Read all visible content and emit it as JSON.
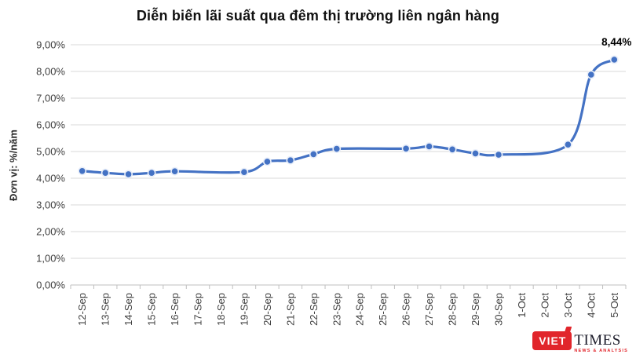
{
  "title": "Diễn biến lãi suất qua đêm thị trường liên ngân hàng",
  "y_axis_title": "Đơn vị: %/năm",
  "chart_data": {
    "type": "line",
    "title": "Diễn biến lãi suất qua đêm thị trường liên ngân hàng",
    "xlabel": "",
    "ylabel": "Đơn vị: %/năm",
    "categories": [
      "12-Sep",
      "13-Sep",
      "14-Sep",
      "15-Sep",
      "16-Sep",
      "17-Sep",
      "18-Sep",
      "19-Sep",
      "20-Sep",
      "21-Sep",
      "22-Sep",
      "23-Sep",
      "24-Sep",
      "25-Sep",
      "26-Sep",
      "27-Sep",
      "28-Sep",
      "29-Sep",
      "30-Sep",
      "1-Oct",
      "2-Oct",
      "3-Oct",
      "4-Oct",
      "5-Oct"
    ],
    "series": [
      {
        "name": "Lãi suất qua đêm",
        "values": [
          4.27,
          4.2,
          4.15,
          4.2,
          4.26,
          null,
          null,
          4.23,
          4.62,
          4.67,
          4.9,
          5.1,
          null,
          null,
          5.11,
          5.19,
          5.08,
          4.93,
          4.88,
          null,
          null,
          5.26,
          7.88,
          8.44
        ]
      }
    ],
    "ylim": [
      0,
      9
    ],
    "y_tick_labels": [
      "0,00%",
      "1,00%",
      "2,00%",
      "3,00%",
      "4,00%",
      "5,00%",
      "6,00%",
      "7,00%",
      "8,00%",
      "9,00%"
    ],
    "grid": true,
    "legend": false,
    "smooth": true,
    "line_color": "#4472C4",
    "marker_halo_color": "#e8eef9",
    "gridline_color": "#d9d9d9",
    "axis_line_color": "#bfbfbf",
    "tick_label_color": "#3f3f3f",
    "annotation": {
      "text": "8,44%",
      "category": "5-Oct"
    }
  },
  "logo": {
    "viet": "VIET",
    "times": "TIMES",
    "tagline": "NEWS & ANALYSIS",
    "red": "#e1252b"
  }
}
